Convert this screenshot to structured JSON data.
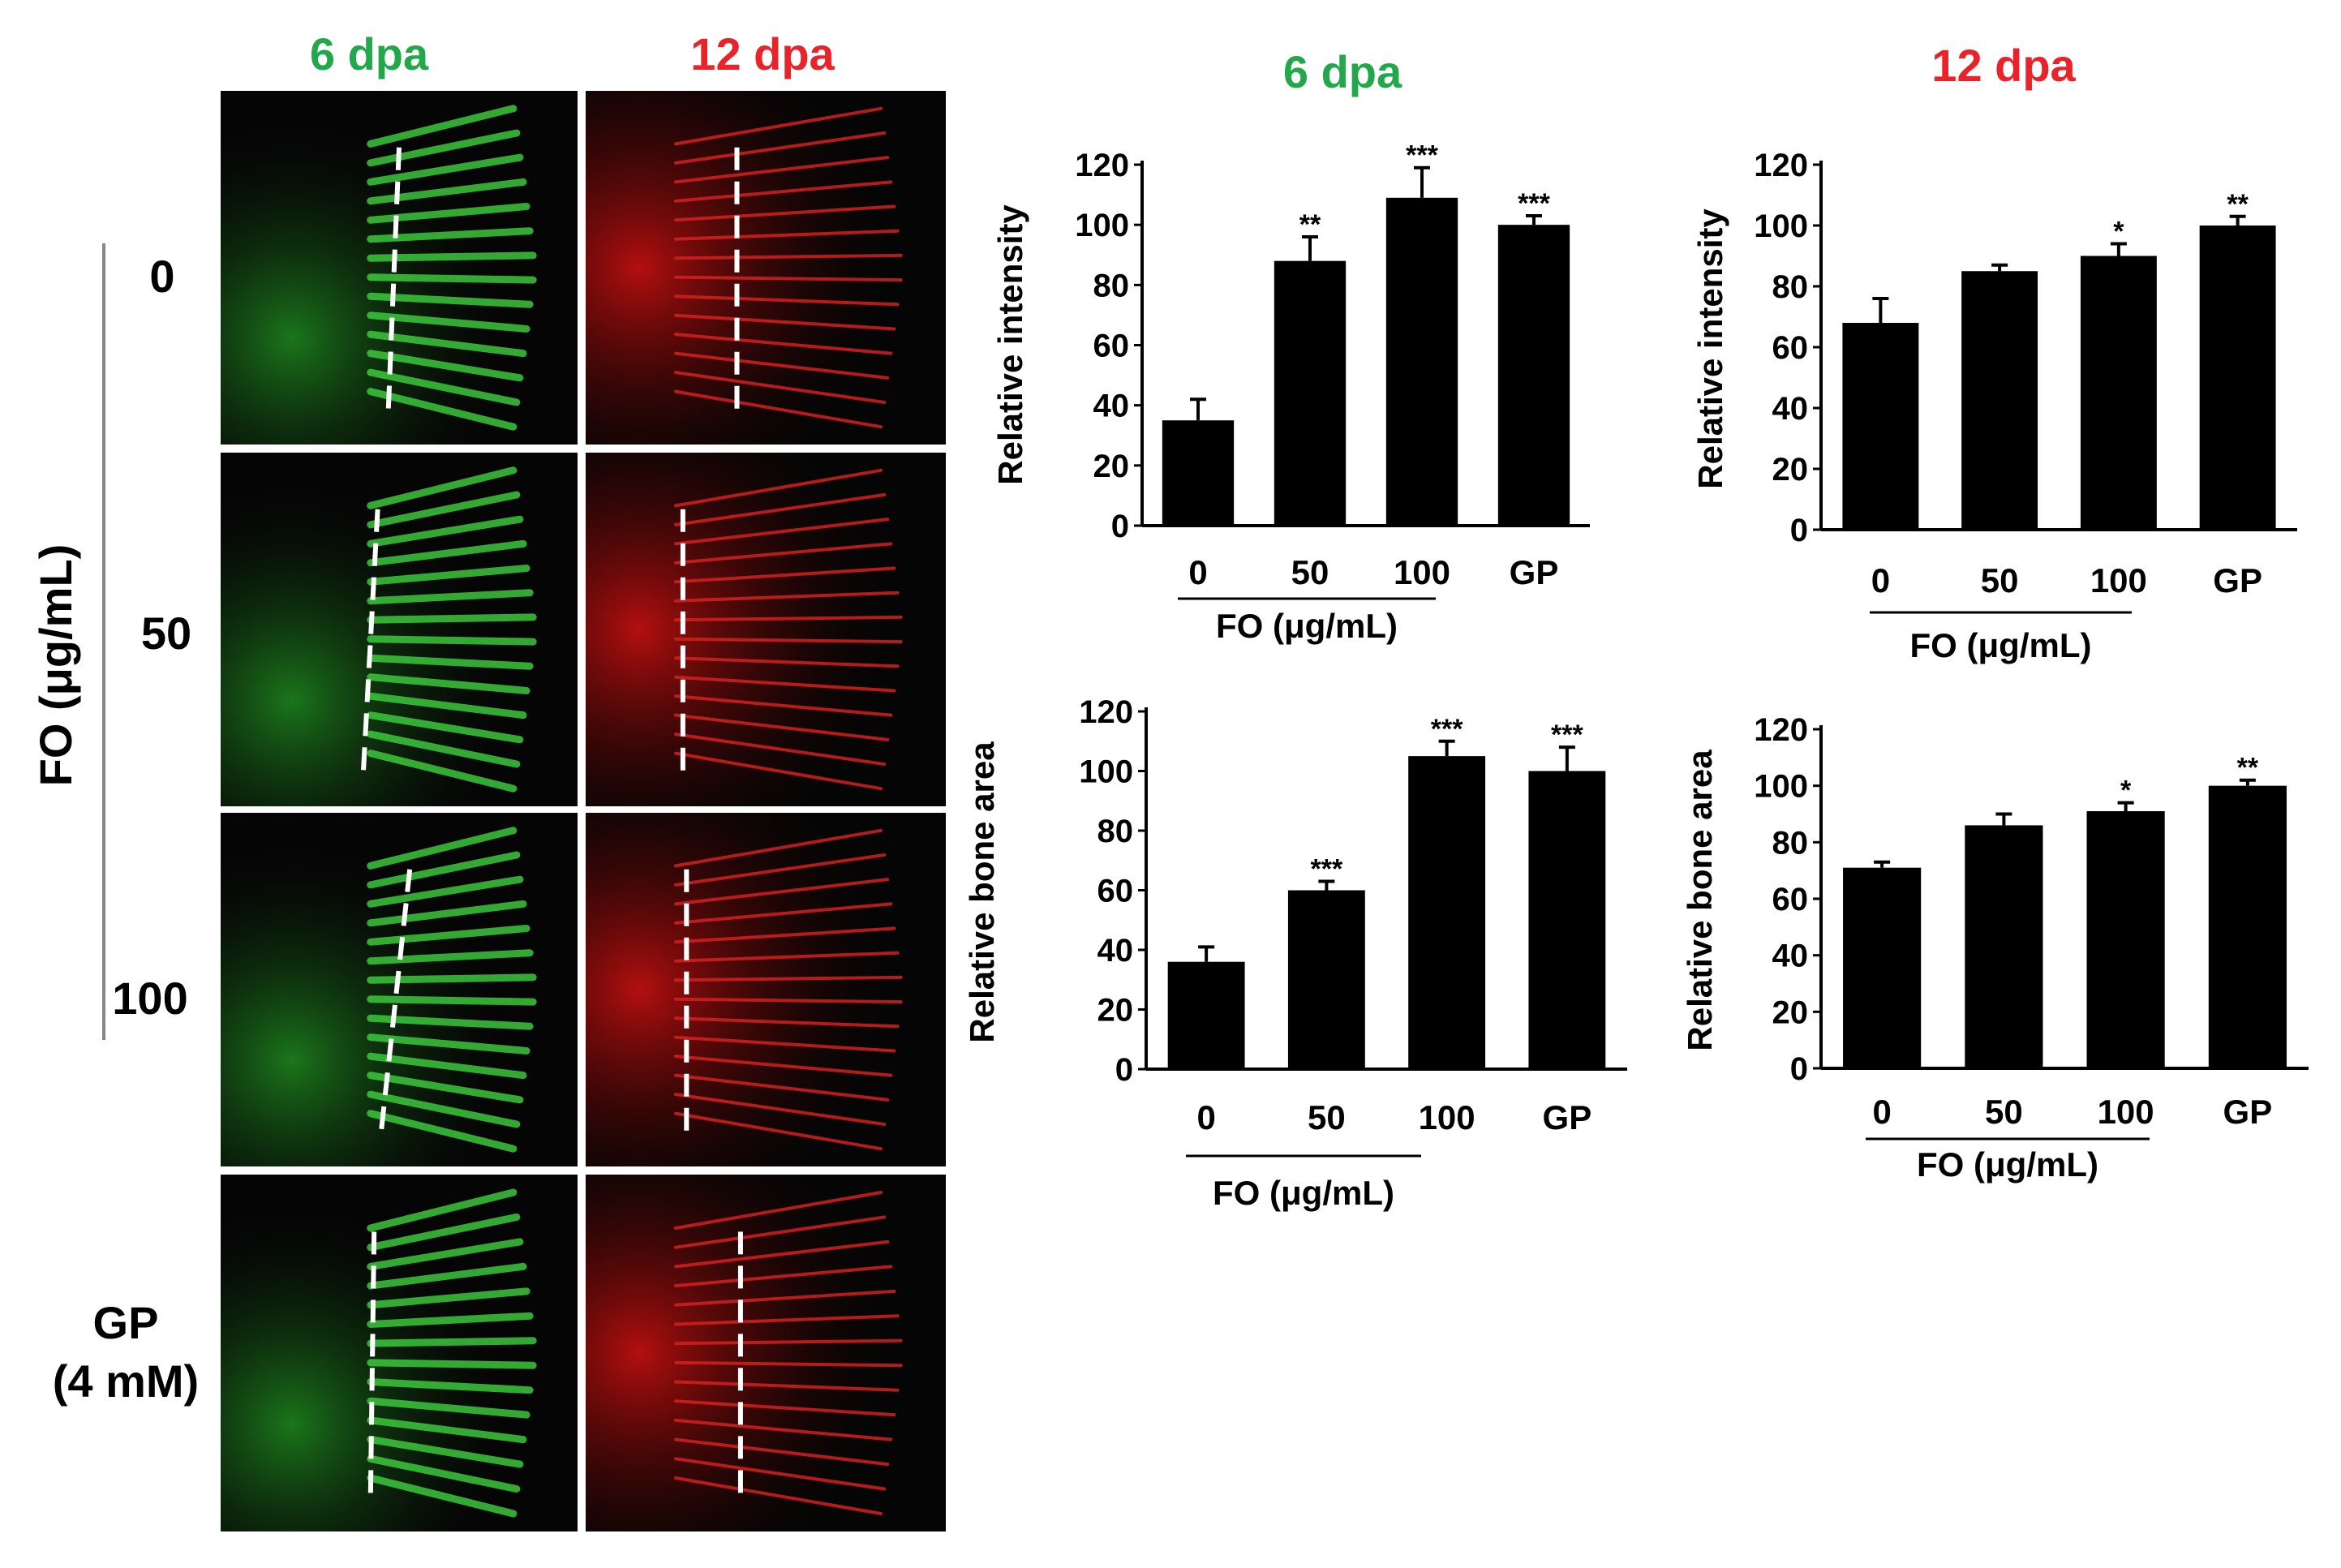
{
  "micrograph_panel": {
    "col_headers": [
      {
        "label": "6 dpa",
        "color": "#22a84a"
      },
      {
        "label": "12 dpa",
        "color": "#e8232a"
      }
    ],
    "group_label": "FO (μg/mL)",
    "rows": [
      {
        "label": "0"
      },
      {
        "label": "50"
      },
      {
        "label": "100"
      },
      {
        "label": "GP",
        "sub": "(4 mM)"
      }
    ]
  },
  "chart_headers": [
    {
      "label": "6 dpa",
      "color": "#22a84a"
    },
    {
      "label": "12 dpa",
      "color": "#e8232a"
    }
  ],
  "chart_data": [
    {
      "type": "bar",
      "categories": [
        "0",
        "50",
        "100",
        "GP"
      ],
      "values": [
        35,
        88,
        109,
        100
      ],
      "errors": [
        7,
        8,
        10,
        3
      ],
      "significance": [
        "",
        "**",
        "***",
        "***"
      ],
      "ylabel": "Relative intensity",
      "xlabel": "FO (μg/mL)",
      "ylim": [
        0,
        120
      ],
      "yticks": [
        0,
        20,
        40,
        60,
        80,
        100,
        120
      ]
    },
    {
      "type": "bar",
      "categories": [
        "0",
        "50",
        "100",
        "GP"
      ],
      "values": [
        68,
        85,
        90,
        100
      ],
      "errors": [
        8,
        2,
        4,
        3
      ],
      "significance": [
        "",
        "",
        "*",
        "**"
      ],
      "ylabel": "Relative intensity",
      "xlabel": "FO (μg/mL)",
      "ylim": [
        0,
        120
      ],
      "yticks": [
        0,
        20,
        40,
        60,
        80,
        100,
        120
      ]
    },
    {
      "type": "bar",
      "categories": [
        "0",
        "50",
        "100",
        "GP"
      ],
      "values": [
        36,
        60,
        105,
        100
      ],
      "errors": [
        5,
        3,
        5,
        8
      ],
      "significance": [
        "",
        "***",
        "***",
        "***"
      ],
      "ylabel": "Relative bone area",
      "xlabel": "FO (μg/mL)",
      "ylim": [
        0,
        120
      ],
      "yticks": [
        0,
        20,
        40,
        60,
        80,
        100,
        120
      ]
    },
    {
      "type": "bar",
      "categories": [
        "0",
        "50",
        "100",
        "GP"
      ],
      "values": [
        71,
        86,
        91,
        100
      ],
      "errors": [
        2,
        4,
        3,
        2
      ],
      "significance": [
        "",
        "",
        "*",
        "**"
      ],
      "ylabel": "Relative bone area",
      "xlabel": "FO (μg/mL)",
      "ylim": [
        0,
        120
      ],
      "yticks": [
        0,
        20,
        40,
        60,
        80,
        100,
        120
      ]
    }
  ]
}
